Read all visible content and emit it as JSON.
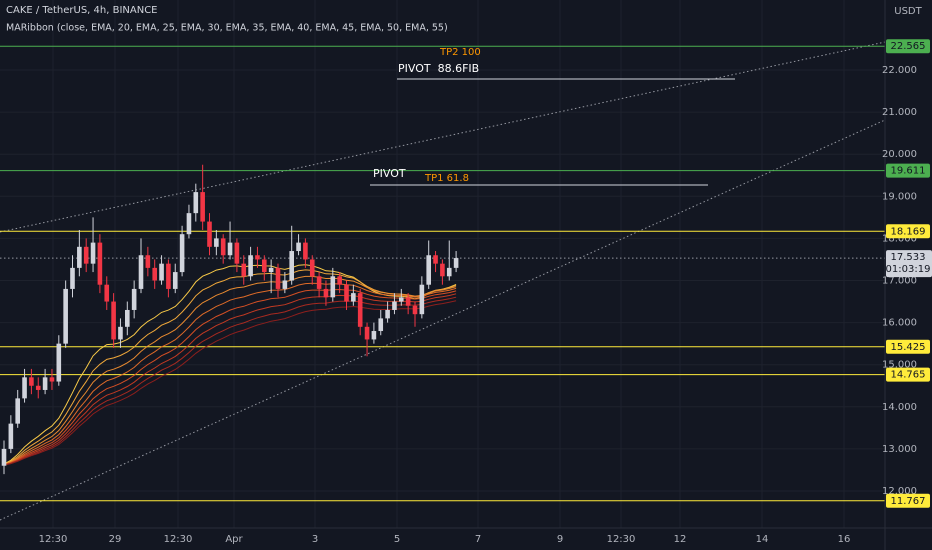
{
  "chart_data": {
    "type": "candlestick",
    "title": "CAKE / TetherUS, 4h, BINANCE",
    "indicator": "MARibbon (close, EMA, 20, EMA, 25, EMA, 30, EMA, 35, EMA, 40, EMA, 45, EMA, 50, EMA, 55)",
    "currency": "USDT",
    "up_color": "#d1d4dc",
    "down_color": "#f23645",
    "ylim": [
      11.121,
      23.663
    ],
    "yticks": [
      {
        "value": 12,
        "label": "12.000"
      },
      {
        "value": 13,
        "label": "13.000"
      },
      {
        "value": 14,
        "label": "14.000"
      },
      {
        "value": 15,
        "label": "15.000"
      },
      {
        "value": 16,
        "label": "16.000"
      },
      {
        "value": 17,
        "label": "17.000"
      },
      {
        "value": 18,
        "label": "18.000"
      },
      {
        "value": 19,
        "label": "19.000"
      },
      {
        "value": 20,
        "label": "20.000"
      },
      {
        "value": 21,
        "label": "21.000"
      },
      {
        "value": 22,
        "label": "22.000"
      }
    ],
    "xticks": [
      "12:30",
      "29",
      "12:30",
      "Apr",
      "3",
      "5",
      "7",
      "9",
      "12:30",
      "12",
      "14",
      "16"
    ],
    "open": [
      12.6,
      13.0,
      13.6,
      14.2,
      14.7,
      14.5,
      14.4,
      14.7,
      14.6,
      15.5,
      16.8,
      17.3,
      17.8,
      17.4,
      17.9,
      16.9,
      16.5,
      15.6,
      15.9,
      16.3,
      16.8,
      17.6,
      17.3,
      17.0,
      17.4,
      16.8,
      17.2,
      18.1,
      18.6,
      19.1,
      18.4,
      17.8,
      18.0,
      17.6,
      17.9,
      17.4,
      17.1,
      17.6,
      17.5,
      17.2,
      17.3,
      16.8,
      17.0,
      17.7,
      17.9,
      17.5,
      17.1,
      16.8,
      16.6,
      17.1,
      16.9,
      16.5,
      16.7,
      15.9,
      15.6,
      15.8,
      16.1,
      16.3,
      16.5,
      16.6,
      16.4,
      16.2,
      16.9,
      17.6,
      17.4,
      17.1,
      17.3
    ],
    "high": [
      13.2,
      13.8,
      14.4,
      14.9,
      14.9,
      14.7,
      14.9,
      14.9,
      15.7,
      17.0,
      17.6,
      18.2,
      18.0,
      18.5,
      18.1,
      17.1,
      16.7,
      16.1,
      16.5,
      17.0,
      18.0,
      17.8,
      17.5,
      17.6,
      17.5,
      17.4,
      18.3,
      18.8,
      19.3,
      19.75,
      18.6,
      18.2,
      18.1,
      18.4,
      18.0,
      17.6,
      17.8,
      17.8,
      17.6,
      17.5,
      17.4,
      17.2,
      18.3,
      18.1,
      18.0,
      17.6,
      17.2,
      17.0,
      17.3,
      17.2,
      17.0,
      16.9,
      16.8,
      16.0,
      16.0,
      16.3,
      16.5,
      16.7,
      16.8,
      16.7,
      16.5,
      17.1,
      17.95,
      17.7,
      17.5,
      17.95,
      17.7
    ],
    "low": [
      12.4,
      12.9,
      13.5,
      14.1,
      14.3,
      14.2,
      14.3,
      14.4,
      14.5,
      15.4,
      16.6,
      17.1,
      17.2,
      17.2,
      16.7,
      16.3,
      15.4,
      15.4,
      15.7,
      16.1,
      16.7,
      17.1,
      16.8,
      16.9,
      16.6,
      16.7,
      17.1,
      18.0,
      18.4,
      18.2,
      17.6,
      17.6,
      17.4,
      17.5,
      17.2,
      16.9,
      17.0,
      17.3,
      17.0,
      16.7,
      16.6,
      16.7,
      16.9,
      17.6,
      17.3,
      16.9,
      16.6,
      16.4,
      16.5,
      16.7,
      16.3,
      16.4,
      15.7,
      15.2,
      15.5,
      15.7,
      16.0,
      16.2,
      16.4,
      16.2,
      15.9,
      16.1,
      16.8,
      17.2,
      16.9,
      17.0,
      17.2
    ],
    "close": [
      13.0,
      13.6,
      14.2,
      14.7,
      14.5,
      14.4,
      14.7,
      14.6,
      15.5,
      16.8,
      17.3,
      17.8,
      17.4,
      17.9,
      16.9,
      16.5,
      15.6,
      15.9,
      16.3,
      16.8,
      17.6,
      17.3,
      17.0,
      17.4,
      16.8,
      17.2,
      18.1,
      18.6,
      19.1,
      18.4,
      17.8,
      18.0,
      17.6,
      17.9,
      17.4,
      17.1,
      17.6,
      17.5,
      17.2,
      17.3,
      16.8,
      17.0,
      17.7,
      17.9,
      17.5,
      17.1,
      16.8,
      16.6,
      17.1,
      16.9,
      16.5,
      16.7,
      15.9,
      15.6,
      15.8,
      16.1,
      16.3,
      16.5,
      16.6,
      16.4,
      16.2,
      16.9,
      17.6,
      17.4,
      17.1,
      17.3,
      17.533
    ],
    "levels": [
      {
        "value": 22.565,
        "color": "#4caf50"
      },
      {
        "value": 19.611,
        "color": "#4caf50"
      },
      {
        "value": 18.169,
        "color": "#ffeb3b"
      },
      {
        "value": 15.425,
        "color": "#ffeb3b"
      },
      {
        "value": 14.765,
        "color": "#ffeb3b"
      },
      {
        "value": 11.767,
        "color": "#ffeb3b"
      }
    ],
    "last_price": 17.533,
    "countdown": "01:03:19",
    "annotations": [
      "TP2 100",
      "PIVOT  88.6FIB",
      "PIVOT",
      "TP1 61.8"
    ]
  }
}
